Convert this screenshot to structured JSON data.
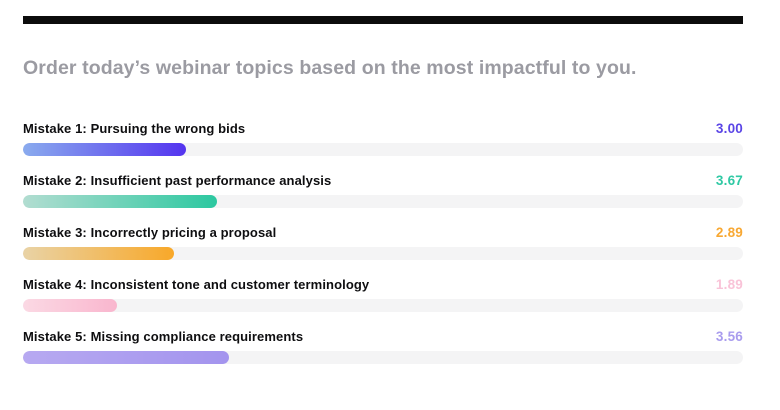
{
  "page": {
    "background_color": "#ffffff",
    "top_rule_color": "#0c0c0c"
  },
  "title": {
    "text": "Order today’s webinar topics based on the most impactful to you.",
    "color": "#9b9ba2"
  },
  "chart_data": {
    "type": "bar",
    "orientation": "horizontal",
    "title": "Order today’s webinar topics based on the most impactful to you.",
    "categories": [
      "Mistake 1: Pursuing the wrong bids",
      "Mistake 2: Insufficient past performance analysis",
      "Mistake 3: Incorrectly pricing a proposal",
      "Mistake 4: Inconsistent tone and customer terminology",
      "Mistake 5: Missing compliance requirements"
    ],
    "values": [
      3.0,
      3.67,
      2.89,
      1.89,
      3.56
    ],
    "value_labels": [
      "3.00",
      "3.67",
      "2.89",
      "1.89",
      "3.56"
    ],
    "bar_fill_percents": [
      22.6,
      27.0,
      21.0,
      13.0,
      28.6
    ],
    "track_color": "#f4f4f5",
    "grid": false,
    "legend": false
  },
  "rows": [
    {
      "label": "Mistake 1: Pursuing the wrong bids",
      "score": "3.00",
      "score_color": "#5a45e6",
      "bar_from": "#8aabee",
      "bar_to": "#5434ef",
      "percent": 22.6
    },
    {
      "label": "Mistake 2: Insufficient past performance analysis",
      "score": "3.67",
      "score_color": "#2fc9a4",
      "bar_from": "#b2ddd1",
      "bar_to": "#2cc8a0",
      "percent": 27.0
    },
    {
      "label": "Mistake 3: Incorrectly pricing a proposal",
      "score": "2.89",
      "score_color": "#f8a833",
      "bar_from": "#e9d3a6",
      "bar_to": "#f8a829",
      "percent": 21.0
    },
    {
      "label": "Mistake 4: Inconsistent tone and customer terminology",
      "score": "1.89",
      "score_color": "#f9c3d8",
      "bar_from": "#fbd9e4",
      "bar_to": "#f9b6ce",
      "percent": 13.0
    },
    {
      "label": "Mistake 5: Missing compliance requirements",
      "score": "3.56",
      "score_color": "#a99cee",
      "bar_from": "#b7a9f1",
      "bar_to": "#a394ee",
      "percent": 28.6
    }
  ]
}
